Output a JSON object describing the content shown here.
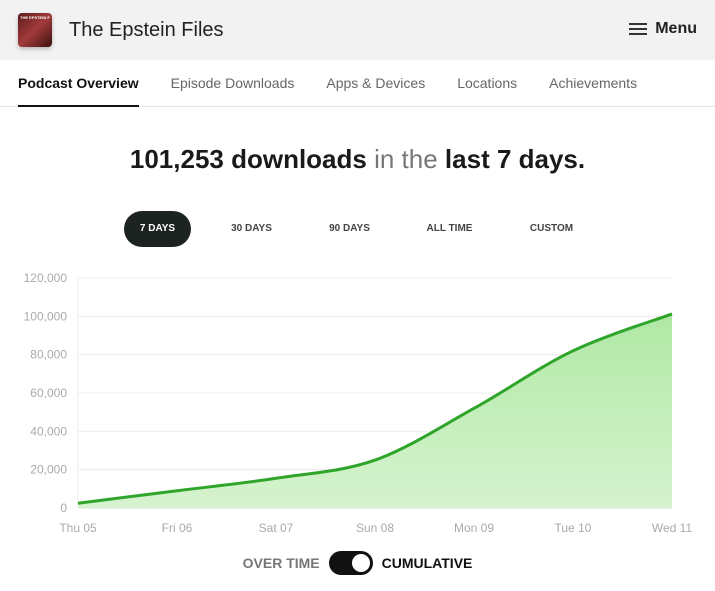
{
  "header": {
    "title": "The Epstein Files",
    "logo_text": "THE EPSTEIN FILES",
    "menu_label": "Menu"
  },
  "tabs": [
    {
      "label": "Podcast Overview",
      "active": true
    },
    {
      "label": "Episode Downloads"
    },
    {
      "label": "Apps & Devices"
    },
    {
      "label": "Locations"
    },
    {
      "label": "Achievements"
    }
  ],
  "headline": {
    "count": "101,253 downloads",
    "mid": " in the ",
    "period": "last 7 days."
  },
  "ranges": [
    {
      "label": "7 DAYS",
      "active": true
    },
    {
      "label": "30 DAYS"
    },
    {
      "label": "90 DAYS"
    },
    {
      "label": "ALL TIME"
    },
    {
      "label": "CUSTOM"
    }
  ],
  "toggle": {
    "left": "OVER TIME",
    "right": "CUMULATIVE",
    "state": "cumulative"
  },
  "chart_data": {
    "type": "area",
    "categories": [
      "Thu 05",
      "Fri 06",
      "Sat 07",
      "Sun 08",
      "Mon 09",
      "Tue 10",
      "Wed 11"
    ],
    "values": [
      2500,
      9000,
      15500,
      25000,
      52000,
      82000,
      101253
    ],
    "ylim": [
      0,
      120000
    ],
    "yticks": [
      "0",
      "20,000",
      "40,000",
      "60,000",
      "80,000",
      "100,000",
      "120,000"
    ],
    "grid": true,
    "colors": {
      "line": "#2ea52a",
      "fill": "#b5eaaa"
    }
  }
}
